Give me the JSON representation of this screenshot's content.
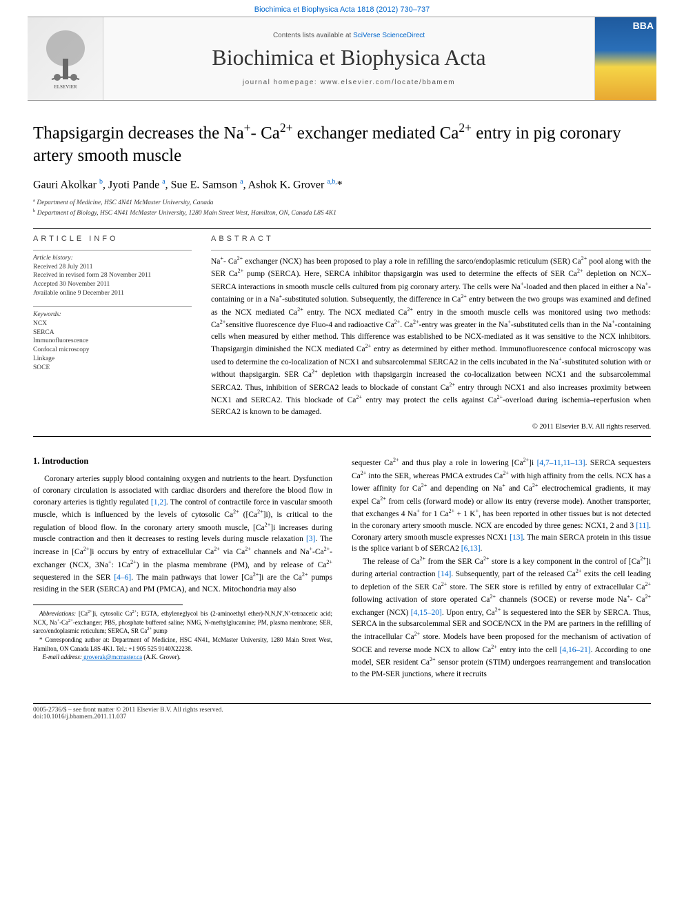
{
  "top_link": "Biochimica et Biophysica Acta 1818 (2012) 730–737",
  "masthead": {
    "contents_prefix": "Contents lists available at ",
    "contents_link": "SciVerse ScienceDirect",
    "journal_name": "Biochimica et Biophysica Acta",
    "homepage_prefix": "journal homepage: ",
    "homepage_url": "www.elsevier.com/locate/bbamem",
    "cover_label": "BBA"
  },
  "title_html": "Thapsigargin decreases the Na<sup>+</sup>- Ca<sup>2+</sup> exchanger mediated Ca<sup>2+</sup> entry in pig coronary artery smooth muscle",
  "authors_html": "Gauri Akolkar <sup>b</sup>, Jyoti Pande <sup>a</sup>, Sue E. Samson <sup>a</sup>, Ashok K. Grover <sup>a,b,</sup>*",
  "affiliations": [
    "<sup>a</sup> Department of Medicine, HSC 4N41 McMaster University, Canada",
    "<sup>b</sup> Department of Biology, HSC 4N41 McMaster University, 1280 Main Street West, Hamilton, ON, Canada L8S 4K1"
  ],
  "info": {
    "head": "ARTICLE INFO",
    "history_label": "Article history:",
    "history": [
      "Received 28 July 2011",
      "Received in revised form 28 November 2011",
      "Accepted 30 November 2011",
      "Available online 9 December 2011"
    ],
    "keywords_label": "Keywords:",
    "keywords": [
      "NCX",
      "SERCA",
      "Immunofluorescence",
      "Confocal microscopy",
      "Linkage",
      "SOCE"
    ]
  },
  "abstract": {
    "head": "ABSTRACT",
    "text_html": "Na<sup>+</sup>- Ca<sup>2+</sup> exchanger (NCX) has been proposed to play a role in refilling the sarco/endoplasmic reticulum (SER) Ca<sup>2+</sup> pool along with the SER Ca<sup>2+</sup> pump (SERCA). Here, SERCA inhibitor thapsigargin was used to determine the effects of SER Ca<sup>2+</sup> depletion on NCX–SERCA interactions in smooth muscle cells cultured from pig coronary artery. The cells were Na<sup>+</sup>-loaded and then placed in either a Na<sup>+</sup>-containing or in a Na<sup>+</sup>-substituted solution. Subsequently, the difference in Ca<sup>2+</sup> entry between the two groups was examined and defined as the NCX mediated Ca<sup>2+</sup> entry. The NCX mediated Ca<sup>2+</sup> entry in the smooth muscle cells was monitored using two methods: Ca<sup>2+</sup>sensitive fluorescence dye Fluo-4 and radioactive Ca<sup>2+</sup>. Ca<sup>2+</sup>-entry was greater in the Na<sup>+</sup>-substituted cells than in the Na<sup>+</sup>-containing cells when measured by either method. This difference was established to be NCX-mediated as it was sensitive to the NCX inhibitors. Thapsigargin diminished the NCX mediated Ca<sup>2+</sup> entry as determined by either method. Immunofluorescence confocal microscopy was used to determine the co-localization of NCX1 and subsarcolemmal SERCA2 in the cells incubated in the Na<sup>+</sup>-substituted solution with or without thapsigargin. SER Ca<sup>2+</sup> depletion with thapsigargin increased the co-localization between NCX1 and the subsarcolemmal SERCA2. Thus, inhibition of SERCA2 leads to blockade of constant Ca<sup>2+</sup> entry through NCX1 and also increases proximity between NCX1 and SERCA2. This blockade of Ca<sup>2+</sup> entry may protect the cells against Ca<sup>2+</sup>-overload during ischemia–reperfusion when SERCA2 is known to be damaged.",
    "copyright": "© 2011 Elsevier B.V. All rights reserved."
  },
  "intro": {
    "head": "1. Introduction",
    "col1_html": "Coronary arteries supply blood containing oxygen and nutrients to the heart. Dysfunction of coronary circulation is associated with cardiac disorders and therefore the blood flow in coronary arteries is tightly regulated <span class=\"ref\">[1,2]</span>. The control of contractile force in vascular smooth muscle, which is influenced by the levels of cytosolic Ca<sup>2+</sup> ([Ca<sup>2+</sup>]i), is critical to the regulation of blood flow. In the coronary artery smooth muscle, [Ca<sup>2+</sup>]i increases during muscle contraction and then it decreases to resting levels during muscle relaxation <span class=\"ref\">[3]</span>. The increase in [Ca<sup>2+</sup>]i occurs by entry of extracellular Ca<sup>2+</sup> via Ca<sup>2+</sup> channels and Na<sup>+</sup>-Ca<sup>2+</sup>-exchanger (NCX, 3Na<sup>+</sup>: 1Ca<sup>2+</sup>) in the plasma membrane (PM), and by release of Ca<sup>2+</sup> sequestered in the SER <span class=\"ref\">[4–6]</span>. The main pathways that lower [Ca<sup>2+</sup>]i are the Ca<sup>2+</sup> pumps residing in the SER (SERCA) and PM (PMCA), and NCX. Mitochondria may also",
    "col2_p1_html": "sequester Ca<sup>2+</sup> and thus play a role in lowering [Ca<sup>2+</sup>]i <span class=\"ref\">[4,7–11,11–13]</span>. SERCA sequesters Ca<sup>2+</sup> into the SER, whereas PMCA extrudes Ca<sup>2+</sup> with high affinity from the cells. NCX has a lower affinity for Ca<sup>2+</sup> and depending on Na<sup>+</sup> and Ca<sup>2+</sup> electrochemical gradients, it may expel Ca<sup>2+</sup> from cells (forward mode) or allow its entry (reverse mode). Another transporter, that exchanges 4 Na<sup>+</sup> for 1 Ca<sup>2+</sup> + 1 K<sup>+</sup>, has been reported in other tissues but is not detected in the coronary artery smooth muscle. NCX are encoded by three genes: NCX1, 2 and 3 <span class=\"ref\">[11]</span>. Coronary artery smooth muscle expresses NCX1 <span class=\"ref\">[13]</span>. The main SERCA protein in this tissue is the splice variant b of SERCA2 <span class=\"ref\">[6,13]</span>.",
    "col2_p2_html": "The release of Ca<sup>2+</sup> from the SER Ca<sup>2+</sup> store is a key component in the control of [Ca<sup>2+</sup>]i during arterial contraction <span class=\"ref\">[14]</span>. Subsequently, part of the released Ca<sup>2+</sup> exits the cell leading to depletion of the SER Ca<sup>2+</sup> store. The SER store is refilled by entry of extracellular Ca<sup>2+</sup> following activation of store operated Ca<sup>2+</sup> channels (SOCE) or reverse mode Na<sup>+</sup>- Ca<sup>2+</sup> exchanger (NCX) <span class=\"ref\">[4,15–20]</span>. Upon entry, Ca<sup>2+</sup> is sequestered into the SER by SERCA. Thus, SERCA in the subsarcolemmal SER and SOCE/NCX in the PM are partners in the refilling of the intracellular Ca<sup>2+</sup> store. Models have been proposed for the mechanism of activation of SOCE and reverse mode NCX to allow Ca<sup>2+</sup> entry into the cell <span class=\"ref\">[4,16–21]</span>. According to one model, SER resident Ca<sup>2+</sup> sensor protein (STIM) undergoes rearrangement and translocation to the PM-SER junctions, where it recruits"
  },
  "footnotes": {
    "abbrev_label": "Abbreviations:",
    "abbrev_html": " [Ca<sup>2+</sup>]i, cytosolic Ca<sup>2+</sup>; EGTA, ethyleneglycol bis (2-aminoethyl ether)-N,N,N′,N′-tetraacetic acid; NCX, Na<sup>+</sup>-Ca<sup>2+</sup>-exchanger; PBS, phosphate buffered saline; NMG, N-methylglucamine; PM, plasma membrane; SER, sarco/endoplasmic reticulum; SERCA, SR Ca<sup>2+</sup> pump",
    "corr_html": "* Corresponding author at: Department of Medicine, HSC 4N41, McMaster University, 1280 Main Street West, Hamilton, ON Canada L8S 4K1. Tel.: +1 905 525 9140X22238.",
    "email_label": "E-mail address:",
    "email": " groverak@mcmaster.ca",
    "email_suffix": " (A.K. Grover)."
  },
  "footer": {
    "line1": "0005-2736/$ – see front matter © 2011 Elsevier B.V. All rights reserved.",
    "line2": "doi:10.1016/j.bbamem.2011.11.037"
  },
  "colors": {
    "link": "#0066cc",
    "text": "#000000",
    "muted": "#555555",
    "rule": "#000000"
  }
}
